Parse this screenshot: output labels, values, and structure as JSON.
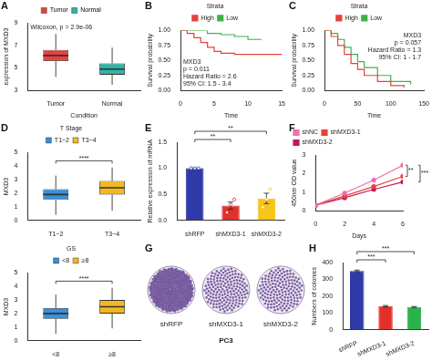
{
  "chart_data": [
    {
      "panel": "A",
      "type": "boxplot",
      "categories": [
        "Tumor",
        "Normal"
      ],
      "colors": [
        "#e8413c",
        "#2fb5a8"
      ],
      "boxes": [
        {
          "min": 4.2,
          "q1": 5.6,
          "median": 6.1,
          "q3": 6.6,
          "max": 8.0
        },
        {
          "min": 3.5,
          "q1": 4.4,
          "median": 4.9,
          "q3": 5.4,
          "max": 6.8
        }
      ],
      "x_label": "Condition",
      "y_label": "expression of MXD3",
      "ylim": [
        3,
        9
      ],
      "yticks": [
        3,
        5,
        7,
        9
      ],
      "grid": false,
      "legend": "top",
      "annotation": "Wilcoxon, p = 2.9e-06"
    },
    {
      "panel": "B",
      "type": "line",
      "line_style": "step",
      "x_label": "Time",
      "y_label": "Survival probability",
      "xlim": [
        0,
        15
      ],
      "xticks": [
        0,
        5,
        10,
        15
      ],
      "ylim": [
        0,
        1
      ],
      "yticks": [
        {
          "value": 0,
          "label": "0.00"
        },
        {
          "value": 0.25,
          "label": "0.25"
        },
        {
          "value": 0.5,
          "label": "0.50"
        },
        {
          "value": 0.75,
          "label": "0.75"
        },
        {
          "value": 1,
          "label": "1.00"
        }
      ],
      "grid": false,
      "legend": "top",
      "legend_title": "Strata",
      "series": [
        {
          "name": "High",
          "color": "#e8413c",
          "x": [
            0,
            1,
            2,
            3,
            4,
            5,
            6,
            8,
            10,
            15
          ],
          "values": [
            1,
            0.95,
            0.88,
            0.8,
            0.72,
            0.65,
            0.62,
            0.6,
            0.6,
            0.6
          ]
        },
        {
          "name": "Low",
          "color": "#3cb44b",
          "x": [
            0,
            2,
            4,
            6,
            8,
            10,
            12
          ],
          "values": [
            1,
            1,
            0.95,
            0.93,
            0.9,
            0.85,
            0.85
          ]
        }
      ],
      "annotation": [
        "MXD3",
        "p = 0.011",
        "Hazard Ratio = 2.6",
        "95% CI: 1.5 - 3.4"
      ]
    },
    {
      "panel": "C",
      "type": "line",
      "line_style": "step",
      "x_label": "Time",
      "y_label": "Survival probability",
      "xlim": [
        0,
        150
      ],
      "xticks": [
        0,
        50,
        100,
        150
      ],
      "ylim": [
        0,
        1
      ],
      "yticks": [
        {
          "value": 0,
          "label": "0.00"
        },
        {
          "value": 0.25,
          "label": "0.25"
        },
        {
          "value": 0.5,
          "label": "0.50"
        },
        {
          "value": 0.75,
          "label": "0.75"
        },
        {
          "value": 1,
          "label": "1.00"
        }
      ],
      "grid": false,
      "legend": "top",
      "legend_title": "Strata",
      "series": [
        {
          "name": "High",
          "color": "#e8413c",
          "x": [
            0,
            10,
            20,
            30,
            40,
            50,
            60,
            80,
            100,
            120
          ],
          "values": [
            1,
            0.9,
            0.75,
            0.6,
            0.45,
            0.35,
            0.25,
            0.15,
            0.08,
            0.05
          ]
        },
        {
          "name": "Low",
          "color": "#3cb44b",
          "x": [
            0,
            10,
            20,
            30,
            40,
            50,
            60,
            80,
            100,
            130
          ],
          "values": [
            1,
            0.95,
            0.85,
            0.72,
            0.6,
            0.48,
            0.38,
            0.25,
            0.15,
            0.1
          ]
        }
      ],
      "annotation": [
        "MXD3",
        "p = 0.057",
        "Hazard Ratio = 1.3",
        "95% CI: 1 - 1.7"
      ]
    },
    {
      "panel": "D",
      "type": "boxplot",
      "categories": [
        "T1~2",
        "T3~4"
      ],
      "colors": [
        "#3a8fd9",
        "#f2b822"
      ],
      "boxes": [
        {
          "min": 0.4,
          "q1": 1.5,
          "median": 1.9,
          "q3": 2.3,
          "max": 3.3
        },
        {
          "min": 0.7,
          "q1": 1.9,
          "median": 2.4,
          "q3": 2.9,
          "max": 3.9
        }
      ],
      "y_label": "MXD3",
      "ylim": [
        0,
        5
      ],
      "yticks": [
        0,
        1,
        2,
        3,
        4,
        5
      ],
      "grid": false,
      "legend": "top",
      "legend_title": "T Stage",
      "comparisons": [
        {
          "text": "****",
          "from": "T1~2",
          "to": "T3~4"
        }
      ]
    },
    {
      "type": "boxplot",
      "categories": [
        "<8",
        "≥8"
      ],
      "colors": [
        "#3a8fd9",
        "#f2b822"
      ],
      "boxes": [
        {
          "min": 0.5,
          "q1": 1.6,
          "median": 2.0,
          "q3": 2.4,
          "max": 3.4
        },
        {
          "min": 0.9,
          "q1": 2.0,
          "median": 2.5,
          "q3": 3.0,
          "max": 3.9
        }
      ],
      "y_label": "MXD3",
      "ylim": [
        0,
        5
      ],
      "yticks": [
        0,
        1,
        2,
        3,
        4,
        5
      ],
      "grid": false,
      "legend": "top",
      "legend_title": "GS",
      "comparisons": [
        {
          "text": "****",
          "from": "<8",
          "to": "≥8"
        }
      ]
    },
    {
      "panel": "E",
      "type": "bar",
      "categories": [
        "shRFP",
        "shMXD3-1",
        "shMXD3-2"
      ],
      "values": [
        1,
        0.28,
        0.42
      ],
      "errors": [
        0,
        0.07,
        0.1
      ],
      "replicates": [
        [
          1,
          1,
          1
        ],
        [
          0.15,
          0.3,
          0.4
        ],
        [
          0.25,
          0.4,
          0.6
        ]
      ],
      "colors": [
        "#2f3aa8",
        "#e0312b",
        "#f5c518"
      ],
      "y_label": "Relative expression of mRNA",
      "ylim": [
        0,
        1.5
      ],
      "yticks": [
        {
          "value": 0,
          "label": "0.0"
        },
        {
          "value": 0.5,
          "label": "0.5"
        },
        {
          "value": 1,
          "label": "1.0"
        },
        {
          "value": 1.5,
          "label": "1.5"
        }
      ],
      "grid": false,
      "comparisons": [
        {
          "text": "**",
          "from": "shRFP",
          "to": "shMXD3-1"
        },
        {
          "text": "**",
          "from": "shRFP",
          "to": "shMXD3-2"
        }
      ]
    },
    {
      "panel": "F",
      "type": "line",
      "marker": "circle",
      "x": [
        0,
        2,
        4,
        6
      ],
      "x_label": "Days",
      "y_label": "450nm OD value",
      "xlim": [
        0,
        6
      ],
      "xticks": [
        0,
        2,
        4,
        6
      ],
      "ylim": [
        0,
        3
      ],
      "yticks": [
        0,
        1,
        2,
        3
      ],
      "grid": false,
      "legend": "upper left",
      "series": [
        {
          "name": "shNC",
          "color": "#f06ea9",
          "values": [
            0.3,
            0.95,
            1.65,
            2.45
          ]
        },
        {
          "name": "shMXD3-1",
          "color": "#e8413c",
          "values": [
            0.3,
            0.8,
            1.3,
            1.85
          ]
        },
        {
          "name": "shMXD3-2",
          "color": "#c2185b",
          "values": [
            0.3,
            0.7,
            1.15,
            1.55
          ]
        }
      ],
      "comparisons": [
        {
          "text": "**",
          "from": "shNC",
          "to": "shMXD3-1"
        },
        {
          "text": "***",
          "from": "shNC",
          "to": "shMXD3-2"
        }
      ]
    },
    {
      "panel": "H",
      "type": "bar",
      "categories": [
        "shRFP",
        "shMXD3-1",
        "shMXD3-2"
      ],
      "values": [
        350,
        140,
        135
      ],
      "errors": [
        5,
        4,
        3
      ],
      "colors": [
        "#2f3aa8",
        "#e0312b",
        "#2bb24c"
      ],
      "y_label": "Numbers of colonies",
      "ylim": [
        0,
        400
      ],
      "yticks": [
        0,
        100,
        200,
        300,
        400
      ],
      "grid": false,
      "comparisons": [
        {
          "text": "***",
          "from": "shRFP",
          "to": "shMXD3-1"
        },
        {
          "text": "***",
          "from": "shRFP",
          "to": "shMXD3-2"
        }
      ]
    }
  ],
  "image_panel": {
    "panel": "G",
    "labels": [
      "shRFP",
      "shMXD3-1",
      "shMXD3-2"
    ],
    "cell_line": "PC3"
  }
}
